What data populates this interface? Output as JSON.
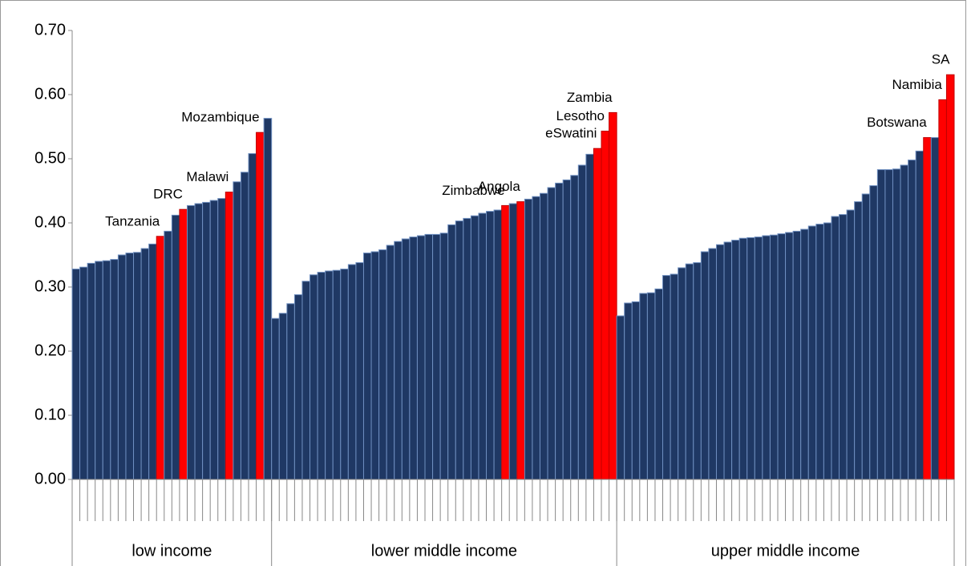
{
  "chart_data": {
    "type": "bar",
    "ylim": [
      0,
      0.7
    ],
    "yticks": [
      {
        "value": 0,
        "label": "0.00"
      },
      {
        "value": 0.1,
        "label": "0.10"
      },
      {
        "value": 0.2,
        "label": "0.20"
      },
      {
        "value": 0.3,
        "label": "0.30"
      },
      {
        "value": 0.4,
        "label": "0.40"
      },
      {
        "value": 0.5,
        "label": "0.50"
      },
      {
        "value": 0.6,
        "label": "0.60"
      },
      {
        "value": 0.7,
        "label": "0.70"
      }
    ],
    "color": "#1f3864",
    "highlight_color": "#ff0000",
    "groups": [
      {
        "name": "low income",
        "categories": [
          null,
          null,
          null,
          null,
          null,
          null,
          null,
          null,
          null,
          null,
          null,
          "Tanzania",
          null,
          null,
          "DRC",
          null,
          null,
          null,
          null,
          null,
          "Malawi",
          null,
          null,
          null,
          "Mozambique",
          null
        ],
        "values": [
          0.328,
          0.331,
          0.337,
          0.34,
          0.341,
          0.343,
          0.35,
          0.353,
          0.354,
          0.36,
          0.367,
          0.379,
          0.387,
          0.412,
          0.421,
          0.427,
          0.43,
          0.432,
          0.435,
          0.438,
          0.448,
          0.464,
          0.479,
          0.508,
          0.541,
          0.563
        ]
      },
      {
        "name": "lower middle income",
        "categories": [
          null,
          null,
          null,
          null,
          null,
          null,
          null,
          null,
          null,
          null,
          null,
          null,
          null,
          null,
          null,
          null,
          null,
          null,
          null,
          null,
          null,
          null,
          null,
          null,
          null,
          null,
          null,
          null,
          null,
          null,
          "Zimbabwe",
          null,
          "Angola",
          null,
          null,
          null,
          null,
          null,
          null,
          null,
          null,
          null,
          "eSwatini",
          "Lesotho",
          "Zambia"
        ],
        "values": [
          0.251,
          0.259,
          0.274,
          0.288,
          0.309,
          0.319,
          0.323,
          0.325,
          0.326,
          0.328,
          0.335,
          0.338,
          0.353,
          0.355,
          0.358,
          0.365,
          0.371,
          0.375,
          0.378,
          0.38,
          0.382,
          0.382,
          0.384,
          0.397,
          0.403,
          0.407,
          0.411,
          0.415,
          0.418,
          0.42,
          0.427,
          0.43,
          0.433,
          0.437,
          0.441,
          0.446,
          0.455,
          0.462,
          0.467,
          0.474,
          0.49,
          0.507,
          0.516,
          0.543,
          0.572
        ]
      },
      {
        "name": "upper middle income",
        "categories": [
          null,
          null,
          null,
          null,
          null,
          null,
          null,
          null,
          null,
          null,
          null,
          null,
          null,
          null,
          null,
          null,
          null,
          null,
          null,
          null,
          null,
          null,
          null,
          null,
          null,
          null,
          null,
          null,
          null,
          null,
          null,
          null,
          null,
          null,
          null,
          null,
          null,
          null,
          null,
          null,
          "Botswana",
          null,
          "Namibia",
          "SA"
        ],
        "values": [
          0.255,
          0.275,
          0.277,
          0.29,
          0.291,
          0.297,
          0.318,
          0.32,
          0.33,
          0.336,
          0.338,
          0.355,
          0.36,
          0.366,
          0.37,
          0.373,
          0.376,
          0.377,
          0.378,
          0.38,
          0.381,
          0.383,
          0.385,
          0.387,
          0.39,
          0.395,
          0.398,
          0.4,
          0.41,
          0.413,
          0.42,
          0.433,
          0.445,
          0.458,
          0.483,
          0.483,
          0.484,
          0.49,
          0.498,
          0.512,
          0.533,
          0.533,
          0.592,
          0.631
        ]
      }
    ]
  }
}
